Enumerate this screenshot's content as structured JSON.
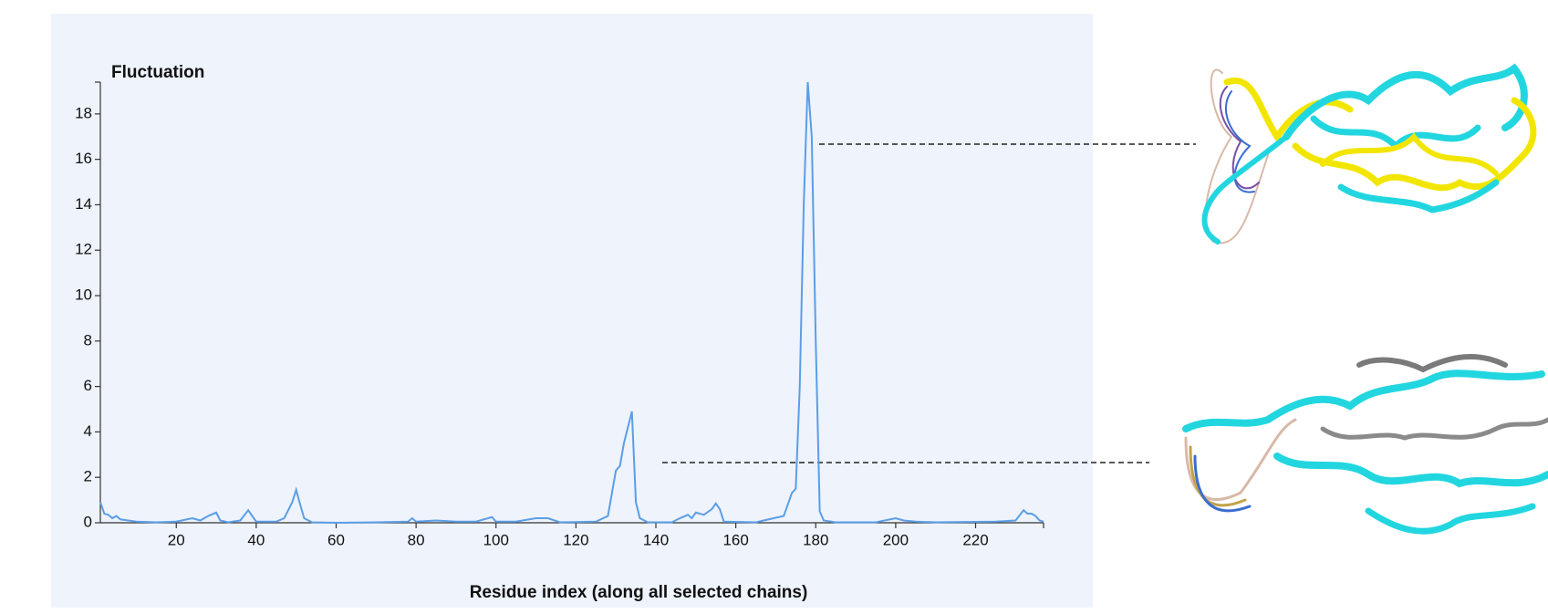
{
  "chart_data": {
    "type": "line",
    "title": "Fluctuation",
    "x_label": "Residue index (along all selected chains)",
    "x": [
      1,
      2,
      3,
      4,
      5,
      6,
      8,
      10,
      15,
      20,
      24,
      26,
      28,
      30,
      31,
      33,
      36,
      38,
      40,
      45,
      47,
      49,
      50,
      51,
      52,
      54,
      60,
      70,
      78,
      79,
      80,
      85,
      90,
      95,
      99,
      100,
      105,
      110,
      113,
      116,
      125,
      128,
      130,
      131,
      132,
      133,
      134,
      135,
      136,
      138,
      144,
      146,
      148,
      149,
      150,
      152,
      154,
      155,
      156,
      157,
      165,
      172,
      174,
      175,
      176,
      177,
      178,
      179,
      180,
      181,
      182,
      185,
      195,
      200,
      202,
      205,
      210,
      225,
      230,
      232,
      233,
      234,
      235,
      236,
      237
    ],
    "values": [
      0.9,
      0.4,
      0.35,
      0.2,
      0.3,
      0.15,
      0.1,
      0.05,
      0.02,
      0.05,
      0.2,
      0.1,
      0.3,
      0.45,
      0.1,
      0.02,
      0.1,
      0.55,
      0.05,
      0.05,
      0.2,
      0.9,
      1.45,
      0.8,
      0.2,
      0.02,
      0.0,
      0.02,
      0.05,
      0.2,
      0.05,
      0.1,
      0.05,
      0.05,
      0.25,
      0.05,
      0.05,
      0.2,
      0.2,
      0.02,
      0.05,
      0.3,
      2.3,
      2.5,
      3.5,
      4.2,
      4.9,
      0.9,
      0.2,
      0.02,
      0.02,
      0.2,
      0.35,
      0.2,
      0.45,
      0.35,
      0.6,
      0.85,
      0.6,
      0.05,
      0.02,
      0.3,
      1.3,
      1.5,
      6,
      14,
      19.4,
      17,
      8,
      0.5,
      0.1,
      0.02,
      0.02,
      0.2,
      0.1,
      0.05,
      0.02,
      0.05,
      0.1,
      0.55,
      0.4,
      0.4,
      0.3,
      0.1,
      0.05
    ],
    "color": "#5b9ee6",
    "xlim": [
      1,
      237
    ],
    "ylim": [
      0,
      19.4
    ],
    "xticks": [
      20,
      40,
      60,
      80,
      100,
      120,
      140,
      160,
      180,
      200,
      220
    ],
    "yticks": [
      0,
      2,
      4,
      6,
      8,
      10,
      12,
      14,
      16,
      18
    ]
  }
}
